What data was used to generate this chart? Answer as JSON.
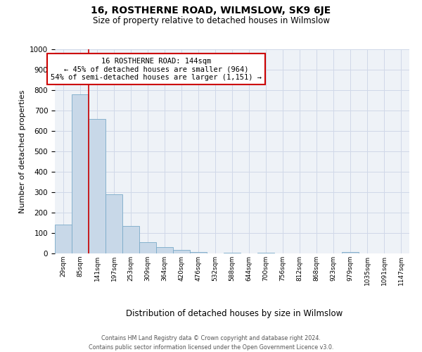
{
  "title": "16, ROSTHERNE ROAD, WILMSLOW, SK9 6JE",
  "subtitle": "Size of property relative to detached houses in Wilmslow",
  "xlabel": "Distribution of detached houses by size in Wilmslow",
  "ylabel": "Number of detached properties",
  "bin_labels": [
    "29sqm",
    "85sqm",
    "141sqm",
    "197sqm",
    "253sqm",
    "309sqm",
    "364sqm",
    "420sqm",
    "476sqm",
    "532sqm",
    "588sqm",
    "644sqm",
    "700sqm",
    "756sqm",
    "812sqm",
    "868sqm",
    "923sqm",
    "979sqm",
    "1035sqm",
    "1091sqm",
    "1147sqm"
  ],
  "bar_values": [
    140,
    780,
    660,
    290,
    133,
    55,
    32,
    17,
    8,
    0,
    5,
    0,
    4,
    0,
    0,
    0,
    0,
    8,
    0,
    0,
    0
  ],
  "bar_color": "#c8d8e8",
  "bar_edge_color": "#7aaac8",
  "property_line_color": "#cc0000",
  "annotation_box_text": "16 ROSTHERNE ROAD: 144sqm\n← 45% of detached houses are smaller (964)\n54% of semi-detached houses are larger (1,151) →",
  "annotation_box_color": "#cc0000",
  "ylim": [
    0,
    1000
  ],
  "yticks": [
    0,
    100,
    200,
    300,
    400,
    500,
    600,
    700,
    800,
    900,
    1000
  ],
  "grid_color": "#d0d8e8",
  "bg_color": "#eef2f7",
  "footer_line1": "Contains HM Land Registry data © Crown copyright and database right 2024.",
  "footer_line2": "Contains public sector information licensed under the Open Government Licence v3.0."
}
